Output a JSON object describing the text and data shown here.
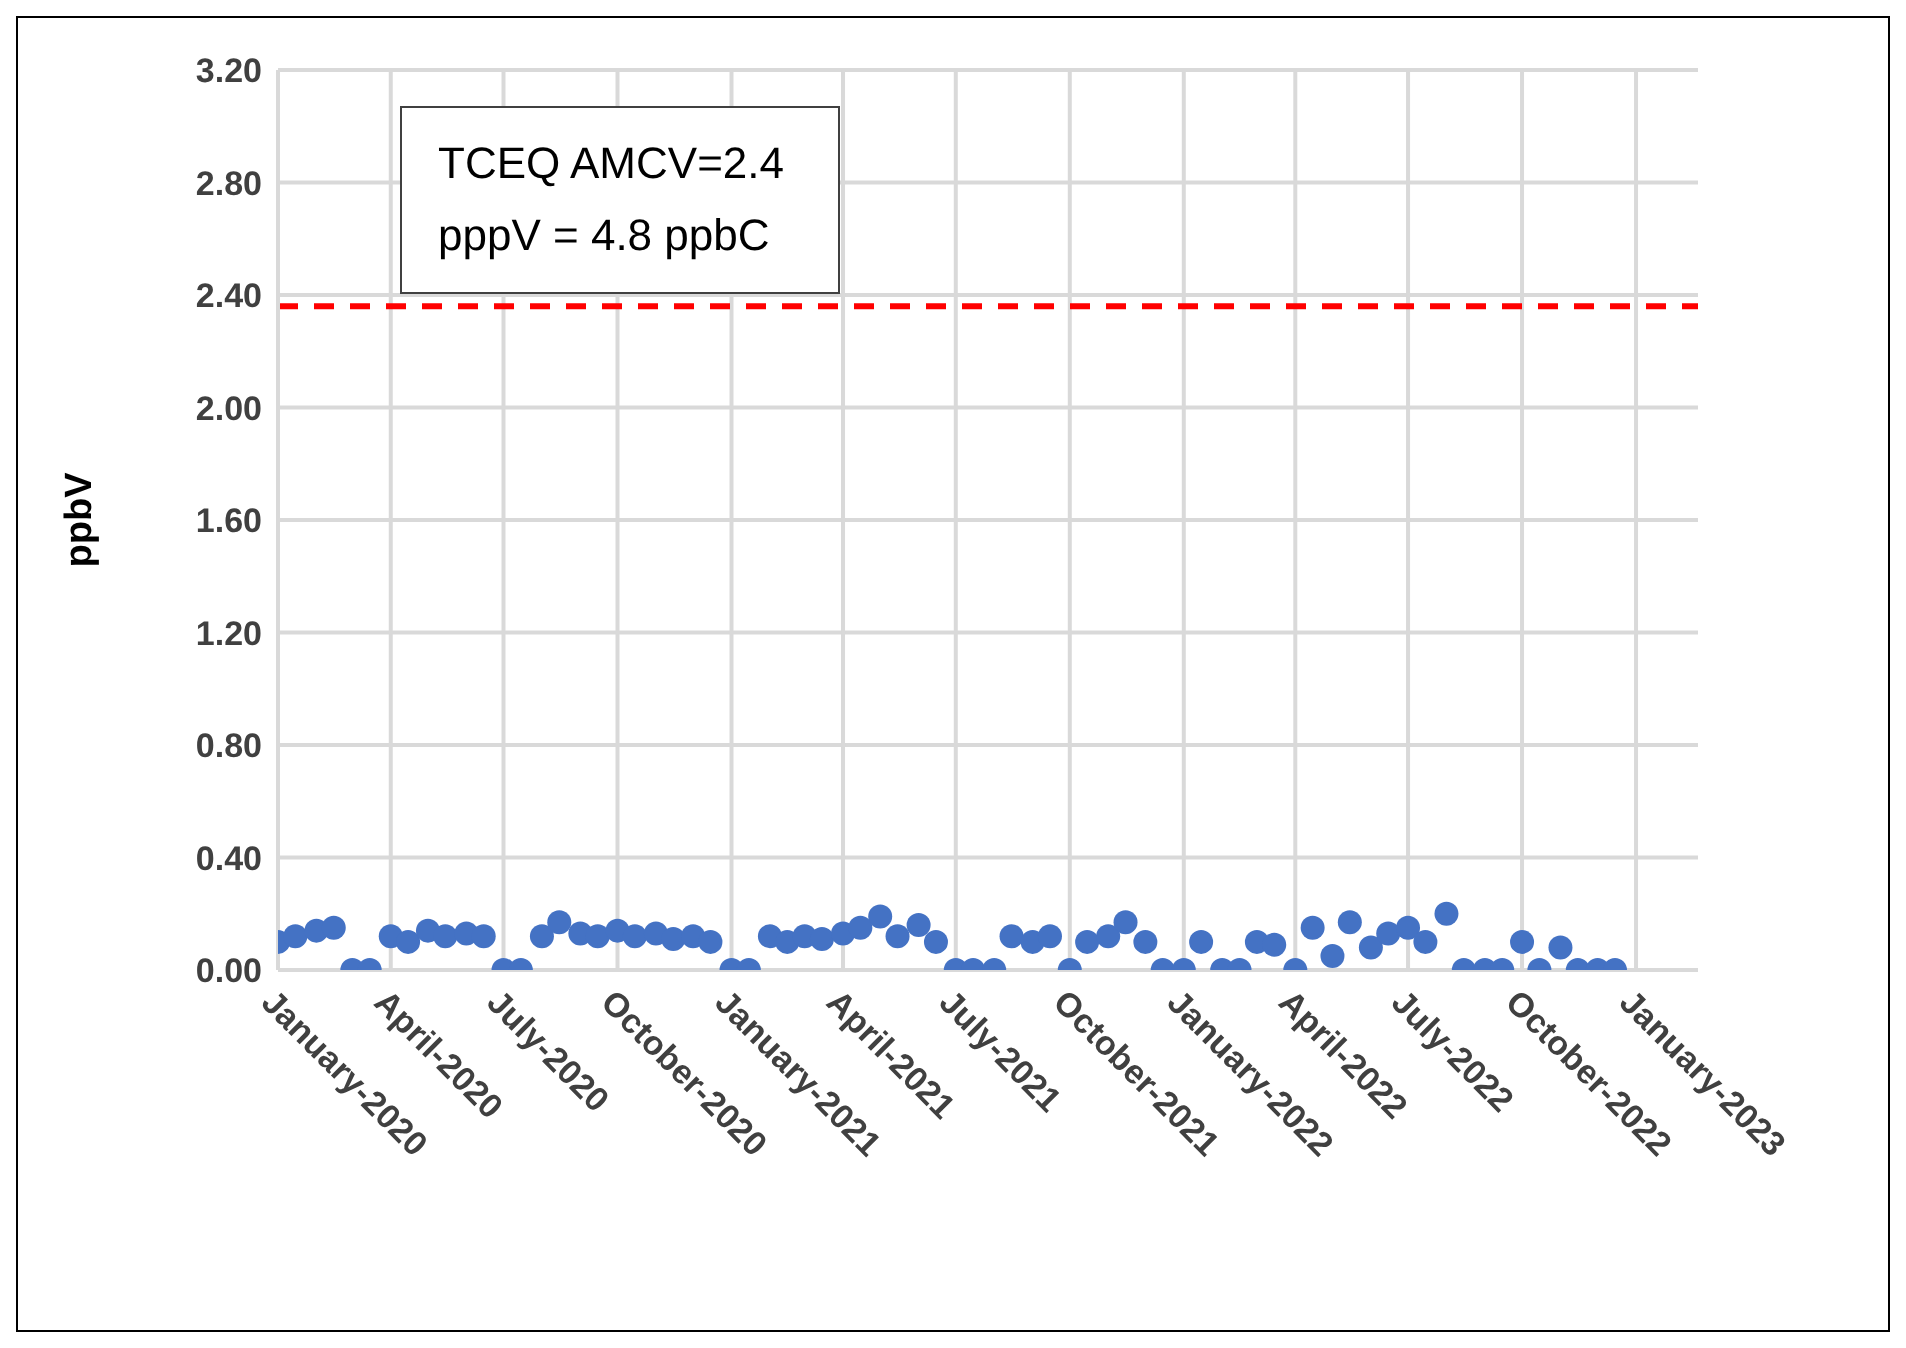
{
  "chart_data": {
    "type": "scatter",
    "ylabel": "ppbV",
    "annotations": [
      "TCEQ AMCV=2.4",
      "pppV = 4.8 ppbC"
    ],
    "x": [
      "2020-01-01",
      "2020-01-15",
      "2020-02-01",
      "2020-02-15",
      "2020-03-01",
      "2020-03-15",
      "2020-04-01",
      "2020-04-15",
      "2020-05-01",
      "2020-05-15",
      "2020-06-01",
      "2020-06-15",
      "2020-07-01",
      "2020-07-15",
      "2020-08-01",
      "2020-08-15",
      "2020-09-01",
      "2020-09-15",
      "2020-10-01",
      "2020-10-15",
      "2020-11-01",
      "2020-11-15",
      "2020-12-01",
      "2020-12-15",
      "2021-01-01",
      "2021-01-15",
      "2021-02-01",
      "2021-02-15",
      "2021-03-01",
      "2021-03-15",
      "2021-04-01",
      "2021-04-15",
      "2021-05-01",
      "2021-05-15",
      "2021-06-01",
      "2021-06-15",
      "2021-07-01",
      "2021-07-15",
      "2021-08-01",
      "2021-08-15",
      "2021-09-01",
      "2021-09-15",
      "2021-10-01",
      "2021-10-15",
      "2021-11-01",
      "2021-11-15",
      "2021-12-01",
      "2021-12-15",
      "2022-01-01",
      "2022-01-15",
      "2022-02-01",
      "2022-02-15",
      "2022-03-01",
      "2022-03-15",
      "2022-04-01",
      "2022-04-15",
      "2022-05-01",
      "2022-05-15",
      "2022-06-01",
      "2022-06-15",
      "2022-07-01",
      "2022-07-15",
      "2022-08-01",
      "2022-08-15",
      "2022-09-01",
      "2022-09-15",
      "2022-10-01",
      "2022-10-15",
      "2022-11-01",
      "2022-11-15",
      "2022-12-01",
      "2022-12-15"
    ],
    "series": [
      {
        "color": "#4472c4",
        "values": [
          0.1,
          0.12,
          0.14,
          0.15,
          0.0,
          0.0,
          0.12,
          0.1,
          0.14,
          0.12,
          0.13,
          0.12,
          0.0,
          0.0,
          0.12,
          0.17,
          0.13,
          0.12,
          0.14,
          0.12,
          0.13,
          0.11,
          0.12,
          0.1,
          0.0,
          0.0,
          0.12,
          0.1,
          0.12,
          0.11,
          0.13,
          0.15,
          0.19,
          0.12,
          0.16,
          0.1,
          0.0,
          0.0,
          0.0,
          0.12,
          0.1,
          0.12,
          0.0,
          0.1,
          0.12,
          0.17,
          0.1,
          0.0,
          0.0,
          0.1,
          0.0,
          0.0,
          0.1,
          0.09,
          0.0,
          0.15,
          0.05,
          0.17,
          0.08,
          0.13,
          0.15,
          0.1,
          0.2,
          0.0,
          0.0,
          0.0,
          0.1,
          0.0,
          0.08,
          0.0,
          0.0,
          0.0
        ]
      }
    ],
    "xlim": [
      "2020-01-01",
      "2023-02-20"
    ],
    "xticks": [
      {
        "value": "2020-01",
        "label": "January-2020"
      },
      {
        "value": "2020-04",
        "label": "April-2020"
      },
      {
        "value": "2020-07",
        "label": "July-2020"
      },
      {
        "value": "2020-10",
        "label": "October-2020"
      },
      {
        "value": "2021-01",
        "label": "January-2021"
      },
      {
        "value": "2021-04",
        "label": "April-2021"
      },
      {
        "value": "2021-07",
        "label": "July-2021"
      },
      {
        "value": "2021-10",
        "label": "October-2021"
      },
      {
        "value": "2022-01",
        "label": "January-2022"
      },
      {
        "value": "2022-04",
        "label": "April-2022"
      },
      {
        "value": "2022-07",
        "label": "July-2022"
      },
      {
        "value": "2022-10",
        "label": "October-2022"
      },
      {
        "value": "2023-01",
        "label": "January-2023"
      }
    ],
    "ylim": [
      0,
      3.2
    ],
    "yticks": [
      {
        "value": 0,
        "label": "0.00"
      },
      {
        "value": 0.4,
        "label": "0.40"
      },
      {
        "value": 0.8,
        "label": "0.80"
      },
      {
        "value": 1.2,
        "label": "1.20"
      },
      {
        "value": 1.6,
        "label": "1.60"
      },
      {
        "value": 2,
        "label": "2.00"
      },
      {
        "value": 2.4,
        "label": "2.40"
      },
      {
        "value": 2.8,
        "label": "2.80"
      },
      {
        "value": 3.2,
        "label": "3.20"
      }
    ],
    "ref_lines": [
      {
        "axis": "y",
        "value": 2.36,
        "color": "#ff0000",
        "line_style": "dashed"
      }
    ],
    "grid": true,
    "marker": "circle"
  }
}
